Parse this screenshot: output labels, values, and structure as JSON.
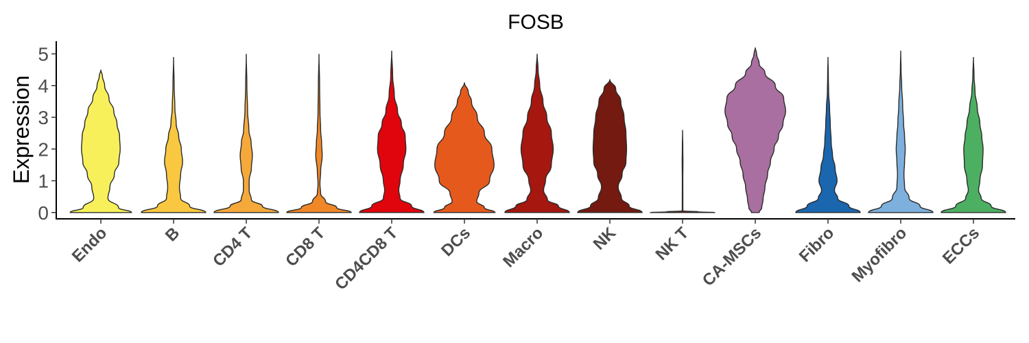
{
  "chart_data": {
    "type": "violin",
    "title": "FOSB",
    "xlabel": "",
    "ylabel": "Expression",
    "ylim": [
      -0.2,
      5.4
    ],
    "yticks": [
      "0",
      "1",
      "2",
      "3",
      "4",
      "5"
    ],
    "categories": [
      "Endo",
      "B",
      "CD4 T",
      "CD8 T",
      "CD4CD8 T",
      "DCs",
      "Macro",
      "NK",
      "NK T",
      "CA-MSCs",
      "Fibro",
      "Myofibro",
      "ECCs"
    ],
    "colors": [
      "#F7F05A",
      "#F9C840",
      "#F5A93A",
      "#F08828",
      "#E0050C",
      "#E55A1C",
      "#A5170F",
      "#741A10",
      "#7A2412",
      "#A86FA0",
      "#1A67B0",
      "#7DB0DC",
      "#4CAF62"
    ],
    "max_values": [
      4.5,
      4.9,
      5.0,
      5.0,
      5.1,
      4.1,
      5.0,
      4.2,
      2.6,
      5.2,
      4.9,
      5.1,
      4.9
    ],
    "series": [
      {
        "name": "Endo",
        "density": [
          [
            0,
            0.95
          ],
          [
            0.15,
            0.55
          ],
          [
            0.45,
            0.22
          ],
          [
            0.8,
            0.28
          ],
          [
            1.2,
            0.42
          ],
          [
            1.6,
            0.56
          ],
          [
            2.0,
            0.6
          ],
          [
            2.4,
            0.58
          ],
          [
            2.8,
            0.5
          ],
          [
            3.2,
            0.4
          ],
          [
            3.6,
            0.25
          ],
          [
            4.0,
            0.12
          ],
          [
            4.3,
            0.05
          ],
          [
            4.5,
            0
          ]
        ]
      },
      {
        "name": "B",
        "density": [
          [
            0,
            1.0
          ],
          [
            0.2,
            0.5
          ],
          [
            0.45,
            0.22
          ],
          [
            0.8,
            0.18
          ],
          [
            1.2,
            0.22
          ],
          [
            1.6,
            0.28
          ],
          [
            2.0,
            0.24
          ],
          [
            2.4,
            0.16
          ],
          [
            2.8,
            0.08
          ],
          [
            3.3,
            0.04
          ],
          [
            4.0,
            0.02
          ],
          [
            4.9,
            0
          ]
        ]
      },
      {
        "name": "CD4 T",
        "density": [
          [
            0,
            1.0
          ],
          [
            0.2,
            0.5
          ],
          [
            0.4,
            0.16
          ],
          [
            0.7,
            0.09
          ],
          [
            1.0,
            0.09
          ],
          [
            1.4,
            0.16
          ],
          [
            1.8,
            0.19
          ],
          [
            2.2,
            0.15
          ],
          [
            2.6,
            0.08
          ],
          [
            3.2,
            0.04
          ],
          [
            4.0,
            0.02
          ],
          [
            5.0,
            0
          ]
        ]
      },
      {
        "name": "CD8 T",
        "density": [
          [
            0,
            1.0
          ],
          [
            0.15,
            0.55
          ],
          [
            0.35,
            0.2
          ],
          [
            0.6,
            0.05
          ],
          [
            0.9,
            0.03
          ],
          [
            1.3,
            0.05
          ],
          [
            1.8,
            0.1
          ],
          [
            2.2,
            0.08
          ],
          [
            2.6,
            0.05
          ],
          [
            3.2,
            0.03
          ],
          [
            4.0,
            0.02
          ],
          [
            5.0,
            0
          ]
        ]
      },
      {
        "name": "CD4CD8 T",
        "density": [
          [
            0,
            1.0
          ],
          [
            0.2,
            0.62
          ],
          [
            0.45,
            0.26
          ],
          [
            0.7,
            0.22
          ],
          [
            1.0,
            0.26
          ],
          [
            1.5,
            0.36
          ],
          [
            2.0,
            0.44
          ],
          [
            2.4,
            0.42
          ],
          [
            2.8,
            0.3
          ],
          [
            3.2,
            0.18
          ],
          [
            3.7,
            0.08
          ],
          [
            4.3,
            0.03
          ],
          [
            5.1,
            0
          ]
        ]
      },
      {
        "name": "DCs",
        "density": [
          [
            0,
            0.95
          ],
          [
            0.15,
            0.62
          ],
          [
            0.35,
            0.38
          ],
          [
            0.6,
            0.45
          ],
          [
            1.0,
            0.78
          ],
          [
            1.5,
            0.92
          ],
          [
            2.0,
            0.85
          ],
          [
            2.5,
            0.62
          ],
          [
            3.0,
            0.4
          ],
          [
            3.5,
            0.22
          ],
          [
            3.8,
            0.12
          ],
          [
            4.1,
            0
          ]
        ]
      },
      {
        "name": "Macro",
        "density": [
          [
            0,
            1.0
          ],
          [
            0.2,
            0.66
          ],
          [
            0.4,
            0.32
          ],
          [
            0.7,
            0.2
          ],
          [
            1.0,
            0.26
          ],
          [
            1.5,
            0.44
          ],
          [
            2.0,
            0.5
          ],
          [
            2.5,
            0.44
          ],
          [
            3.0,
            0.3
          ],
          [
            3.5,
            0.18
          ],
          [
            4.0,
            0.08
          ],
          [
            4.5,
            0.03
          ],
          [
            5.0,
            0
          ]
        ]
      },
      {
        "name": "NK",
        "density": [
          [
            0,
            1.0
          ],
          [
            0.2,
            0.6
          ],
          [
            0.45,
            0.36
          ],
          [
            0.8,
            0.26
          ],
          [
            1.2,
            0.38
          ],
          [
            1.6,
            0.5
          ],
          [
            2.0,
            0.52
          ],
          [
            2.5,
            0.5
          ],
          [
            3.0,
            0.44
          ],
          [
            3.5,
            0.34
          ],
          [
            3.9,
            0.18
          ],
          [
            4.2,
            0
          ]
        ]
      },
      {
        "name": "NK T",
        "density": [
          [
            0,
            1.0
          ],
          [
            0.02,
            0.5
          ],
          [
            0.05,
            0.01
          ],
          [
            1.0,
            0.008
          ],
          [
            1.6,
            0.012
          ],
          [
            2.0,
            0.008
          ],
          [
            2.6,
            0
          ]
        ]
      },
      {
        "name": "CA-MSCs",
        "density": [
          [
            0,
            0.12
          ],
          [
            0.15,
            0.2
          ],
          [
            0.4,
            0.24
          ],
          [
            0.8,
            0.3
          ],
          [
            1.2,
            0.38
          ],
          [
            1.6,
            0.47
          ],
          [
            2.0,
            0.58
          ],
          [
            2.4,
            0.72
          ],
          [
            2.8,
            0.86
          ],
          [
            3.2,
            0.94
          ],
          [
            3.6,
            0.88
          ],
          [
            4.0,
            0.62
          ],
          [
            4.4,
            0.3
          ],
          [
            4.7,
            0.12
          ],
          [
            5.0,
            0.04
          ],
          [
            5.2,
            0
          ]
        ]
      },
      {
        "name": "Fibro",
        "density": [
          [
            0,
            1.0
          ],
          [
            0.2,
            0.65
          ],
          [
            0.45,
            0.3
          ],
          [
            0.7,
            0.2
          ],
          [
            1.0,
            0.28
          ],
          [
            1.4,
            0.22
          ],
          [
            1.8,
            0.14
          ],
          [
            2.2,
            0.1
          ],
          [
            2.8,
            0.07
          ],
          [
            3.3,
            0.05
          ],
          [
            3.8,
            0.02
          ],
          [
            4.3,
            0.01
          ],
          [
            4.9,
            0
          ]
        ]
      },
      {
        "name": "Myofibro",
        "density": [
          [
            0,
            1.0
          ],
          [
            0.2,
            0.6
          ],
          [
            0.45,
            0.26
          ],
          [
            0.8,
            0.12
          ],
          [
            1.2,
            0.1
          ],
          [
            1.6,
            0.12
          ],
          [
            2.0,
            0.14
          ],
          [
            2.4,
            0.12
          ],
          [
            2.8,
            0.09
          ],
          [
            3.4,
            0.06
          ],
          [
            4.0,
            0.03
          ],
          [
            4.5,
            0.01
          ],
          [
            5.1,
            0
          ]
        ]
      },
      {
        "name": "ECCs",
        "density": [
          [
            0,
            1.0
          ],
          [
            0.2,
            0.55
          ],
          [
            0.45,
            0.24
          ],
          [
            0.7,
            0.16
          ],
          [
            1.0,
            0.2
          ],
          [
            1.5,
            0.28
          ],
          [
            2.0,
            0.3
          ],
          [
            2.4,
            0.26
          ],
          [
            2.8,
            0.2
          ],
          [
            3.3,
            0.12
          ],
          [
            3.8,
            0.05
          ],
          [
            4.3,
            0.02
          ],
          [
            4.9,
            0
          ]
        ]
      }
    ],
    "grid": false,
    "legend": "none"
  }
}
